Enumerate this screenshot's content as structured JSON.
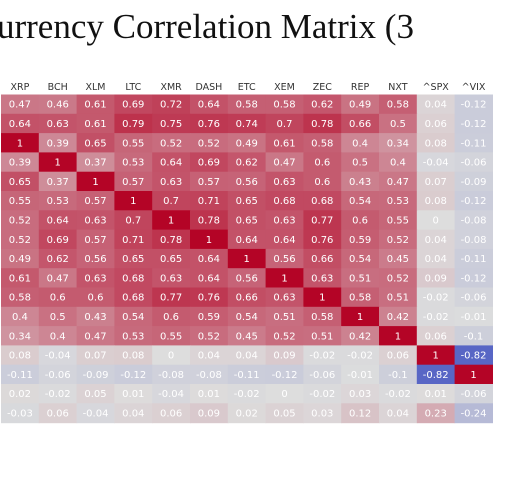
{
  "chart_data": {
    "type": "heatmap",
    "title": "urrency Correlation Matrix (3",
    "columns": [
      "XRP",
      "BCH",
      "XLM",
      "LTC",
      "XMR",
      "DASH",
      "ETC",
      "XEM",
      "ZEC",
      "REP",
      "NXT",
      "^SPX",
      "^VIX"
    ],
    "values": [
      [
        0.47,
        0.46,
        0.61,
        0.69,
        0.72,
        0.64,
        0.58,
        0.58,
        0.62,
        0.49,
        0.58,
        0.04,
        -0.12
      ],
      [
        0.64,
        0.63,
        0.61,
        0.79,
        0.75,
        0.76,
        0.74,
        0.7,
        0.78,
        0.66,
        0.5,
        0.06,
        -0.12
      ],
      [
        1,
        0.39,
        0.65,
        0.55,
        0.52,
        0.52,
        0.49,
        0.61,
        0.58,
        0.4,
        0.34,
        0.08,
        -0.11
      ],
      [
        0.39,
        1,
        0.37,
        0.53,
        0.64,
        0.69,
        0.62,
        0.47,
        0.6,
        0.5,
        0.4,
        -0.04,
        -0.06
      ],
      [
        0.65,
        0.37,
        1,
        0.57,
        0.63,
        0.57,
        0.56,
        0.63,
        0.6,
        0.43,
        0.47,
        0.07,
        -0.09
      ],
      [
        0.55,
        0.53,
        0.57,
        1,
        0.7,
        0.71,
        0.65,
        0.68,
        0.68,
        0.54,
        0.53,
        0.08,
        -0.12
      ],
      [
        0.52,
        0.64,
        0.63,
        0.7,
        1,
        0.78,
        0.65,
        0.63,
        0.77,
        0.6,
        0.55,
        0,
        -0.08
      ],
      [
        0.52,
        0.69,
        0.57,
        0.71,
        0.78,
        1,
        0.64,
        0.64,
        0.76,
        0.59,
        0.52,
        0.04,
        -0.08
      ],
      [
        0.49,
        0.62,
        0.56,
        0.65,
        0.65,
        0.64,
        1,
        0.56,
        0.66,
        0.54,
        0.45,
        0.04,
        -0.11
      ],
      [
        0.61,
        0.47,
        0.63,
        0.68,
        0.63,
        0.64,
        0.56,
        1,
        0.63,
        0.51,
        0.52,
        0.09,
        -0.12
      ],
      [
        0.58,
        0.6,
        0.6,
        0.68,
        0.77,
        0.76,
        0.66,
        0.63,
        1,
        0.58,
        0.51,
        -0.02,
        -0.06
      ],
      [
        0.4,
        0.5,
        0.43,
        0.54,
        0.6,
        0.59,
        0.54,
        0.51,
        0.58,
        1,
        0.42,
        -0.02,
        -0.01
      ],
      [
        0.34,
        0.4,
        0.47,
        0.53,
        0.55,
        0.52,
        0.45,
        0.52,
        0.51,
        0.42,
        1,
        0.06,
        -0.1
      ],
      [
        0.08,
        -0.04,
        0.07,
        0.08,
        0,
        0.04,
        0.04,
        0.09,
        -0.02,
        -0.02,
        0.06,
        1,
        -0.82
      ],
      [
        -0.11,
        -0.06,
        -0.09,
        -0.12,
        -0.08,
        -0.08,
        -0.11,
        -0.12,
        -0.06,
        -0.01,
        -0.1,
        -0.82,
        1
      ],
      [
        0.02,
        -0.02,
        0.05,
        0.01,
        -0.04,
        0.01,
        -0.02,
        0,
        -0.02,
        0.03,
        -0.02,
        0.01,
        -0.06
      ],
      [
        -0.03,
        0.06,
        -0.04,
        0.04,
        0.06,
        0.09,
        0.02,
        0.05,
        0.03,
        0.12,
        0.04,
        0.23,
        -0.24
      ]
    ],
    "color_scale": {
      "min": -1,
      "max": 1,
      "low": "#3b4cc0",
      "mid": "#dddddd",
      "high": "#b40426"
    }
  }
}
